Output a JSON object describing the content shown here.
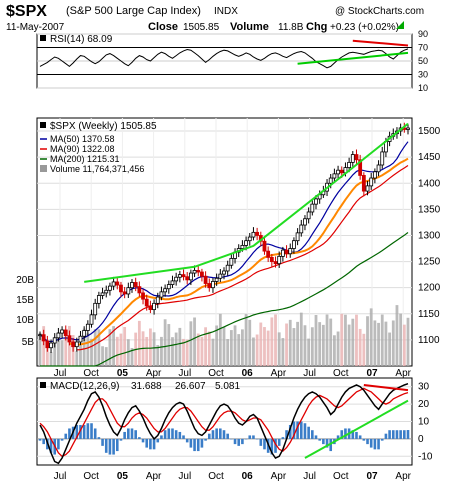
{
  "header": {
    "symbol": "$SPX",
    "name": "(S&P 500 Large Cap Index)",
    "exchange": "INDX",
    "watermark": "@ StockCharts.com",
    "date": "11-May-2007",
    "close_label": "Close",
    "close_value": "1505.85",
    "volume_label": "Volume",
    "volume_value": "11.8B",
    "chg_label": "Chg",
    "chg_value": "+0.23 (+0.02%)",
    "chg_arrow_color": "#00aa00"
  },
  "chart_data": [
    {
      "panel": "rsi",
      "type": "line",
      "legend": "RSI(14) 68.09",
      "ylim": [
        10,
        90
      ],
      "y_ticks": [
        10,
        30,
        50,
        70,
        90
      ],
      "reference_lines": [
        30,
        70
      ],
      "values": [
        42,
        45,
        48,
        52,
        56,
        54,
        50,
        46,
        42,
        47,
        53,
        58,
        57,
        53,
        49,
        46,
        49,
        54,
        59,
        61,
        58,
        54,
        50,
        46,
        43,
        48,
        54,
        58,
        56,
        52,
        50,
        55,
        60,
        63,
        61,
        57,
        54,
        58,
        62,
        65,
        67,
        66,
        62,
        58,
        53,
        48,
        52,
        57,
        61,
        64,
        66,
        65,
        62,
        59,
        57,
        59,
        62,
        60,
        56,
        53,
        51,
        54,
        58,
        61,
        62,
        60,
        57,
        55,
        58,
        61,
        63,
        64,
        62,
        58,
        54,
        49,
        46,
        43,
        40,
        42,
        47,
        52,
        56,
        59,
        62,
        63,
        62,
        61,
        60,
        62,
        64,
        65,
        66,
        65,
        61,
        56,
        53,
        58,
        63,
        66,
        68
      ]
    },
    {
      "panel": "price",
      "type": "candlestick",
      "legend": "$SPX (Weekly) 1505.85",
      "ylim": [
        1050,
        1525
      ],
      "y_ticks": [
        1100,
        1150,
        1200,
        1250,
        1300,
        1350,
        1400,
        1450,
        1500
      ],
      "volume_ticks": [
        "20B",
        "15B",
        "10B",
        "5B"
      ],
      "x_tick_labels": [
        "Jul",
        "Oct",
        "05",
        "Apr",
        "Jul",
        "Oct",
        "06",
        "Apr",
        "Jul",
        "Oct",
        "07",
        "Apr"
      ],
      "series": [
        {
          "name": "MA(50) 1370.58",
          "color": "#0000a0"
        },
        {
          "name": "MA(90) 1322.08",
          "color": "#e00000"
        },
        {
          "name": "MA(200) 1215.31",
          "color": "#006600"
        },
        {
          "name": "Volume 11,764,371,456",
          "color": "#888888"
        }
      ],
      "close": [
        1110,
        1098,
        1085,
        1094,
        1104,
        1113,
        1119,
        1108,
        1096,
        1087,
        1096,
        1107,
        1118,
        1130,
        1148,
        1170,
        1185,
        1190,
        1195,
        1203,
        1211,
        1205,
        1192,
        1188,
        1200,
        1210,
        1202,
        1190,
        1178,
        1165,
        1158,
        1170,
        1182,
        1192,
        1198,
        1206,
        1213,
        1220,
        1225,
        1221,
        1215,
        1228,
        1233,
        1230,
        1222,
        1208,
        1200,
        1212,
        1218,
        1226,
        1232,
        1243,
        1256,
        1268,
        1275,
        1281,
        1290,
        1297,
        1306,
        1300,
        1289,
        1270,
        1258,
        1250,
        1246,
        1260,
        1272,
        1265,
        1275,
        1290,
        1305,
        1320,
        1332,
        1345,
        1360,
        1370,
        1378,
        1385,
        1400,
        1410,
        1418,
        1425,
        1420,
        1430,
        1440,
        1455,
        1445,
        1415,
        1385,
        1395,
        1410,
        1422,
        1435,
        1460,
        1480,
        1490,
        1495,
        1500,
        1506,
        1503,
        1505.85
      ],
      "trend_upper": [
        [
          0.12,
          1211
        ],
        [
          0.42,
          1240
        ],
        [
          0.58,
          1280
        ],
        [
          0.85,
          1430
        ],
        [
          1.0,
          1514
        ]
      ],
      "trend_rsi_lower": [
        [
          0.7,
          46
        ],
        [
          1.0,
          62
        ]
      ],
      "trend_rsi_upper": [
        [
          0.85,
          80
        ],
        [
          1.0,
          73
        ]
      ]
    },
    {
      "panel": "macd",
      "type": "line",
      "legend_macd": "MACD(12,26,9)",
      "macd_value": "31.688",
      "signal_value": "26.607",
      "histogram_value": "5.081",
      "ylim": [
        -15,
        35
      ],
      "y_ticks": [
        -10,
        0,
        10,
        20,
        30
      ],
      "macd": [
        8,
        4,
        -2,
        -8,
        -13,
        -14,
        -11,
        -6,
        -1,
        4,
        9,
        13,
        17,
        22,
        26,
        27,
        24,
        19,
        13,
        8,
        4,
        2,
        6,
        11,
        15,
        18,
        19,
        16,
        12,
        7,
        3,
        0,
        2,
        6,
        11,
        15,
        18,
        20,
        21,
        20,
        16,
        11,
        6,
        3,
        2,
        4,
        8,
        12,
        16,
        19,
        20,
        19,
        16,
        12,
        9,
        8,
        10,
        13,
        14,
        12,
        7,
        2,
        -3,
        -8,
        -11,
        -10,
        -6,
        0,
        6,
        12,
        17,
        21,
        24,
        26,
        27,
        26,
        24,
        21,
        18,
        14,
        16,
        20,
        24,
        27,
        29,
        30,
        31,
        30,
        28,
        25,
        22,
        19,
        17,
        20,
        23,
        26,
        28,
        29,
        30,
        31,
        31.7
      ],
      "signal": [
        9,
        7,
        4,
        0,
        -4,
        -8,
        -10,
        -9,
        -7,
        -3,
        1,
        5,
        9,
        13,
        17,
        21,
        23,
        23,
        21,
        17,
        13,
        9,
        7,
        7,
        9,
        12,
        14,
        15,
        14,
        12,
        9,
        6,
        4,
        4,
        6,
        9,
        12,
        15,
        17,
        18,
        18,
        16,
        13,
        10,
        7,
        5,
        5,
        7,
        10,
        13,
        15,
        16,
        16,
        15,
        13,
        11,
        10,
        11,
        12,
        12,
        11,
        8,
        5,
        1,
        -3,
        -6,
        -7,
        -5,
        -2,
        2,
        7,
        11,
        15,
        19,
        22,
        24,
        25,
        24,
        23,
        21,
        19,
        18,
        19,
        21,
        23,
        25,
        27,
        28,
        29,
        28,
        27,
        25,
        23,
        21,
        20,
        21,
        23,
        24,
        25,
        26,
        26.6
      ]
    }
  ]
}
